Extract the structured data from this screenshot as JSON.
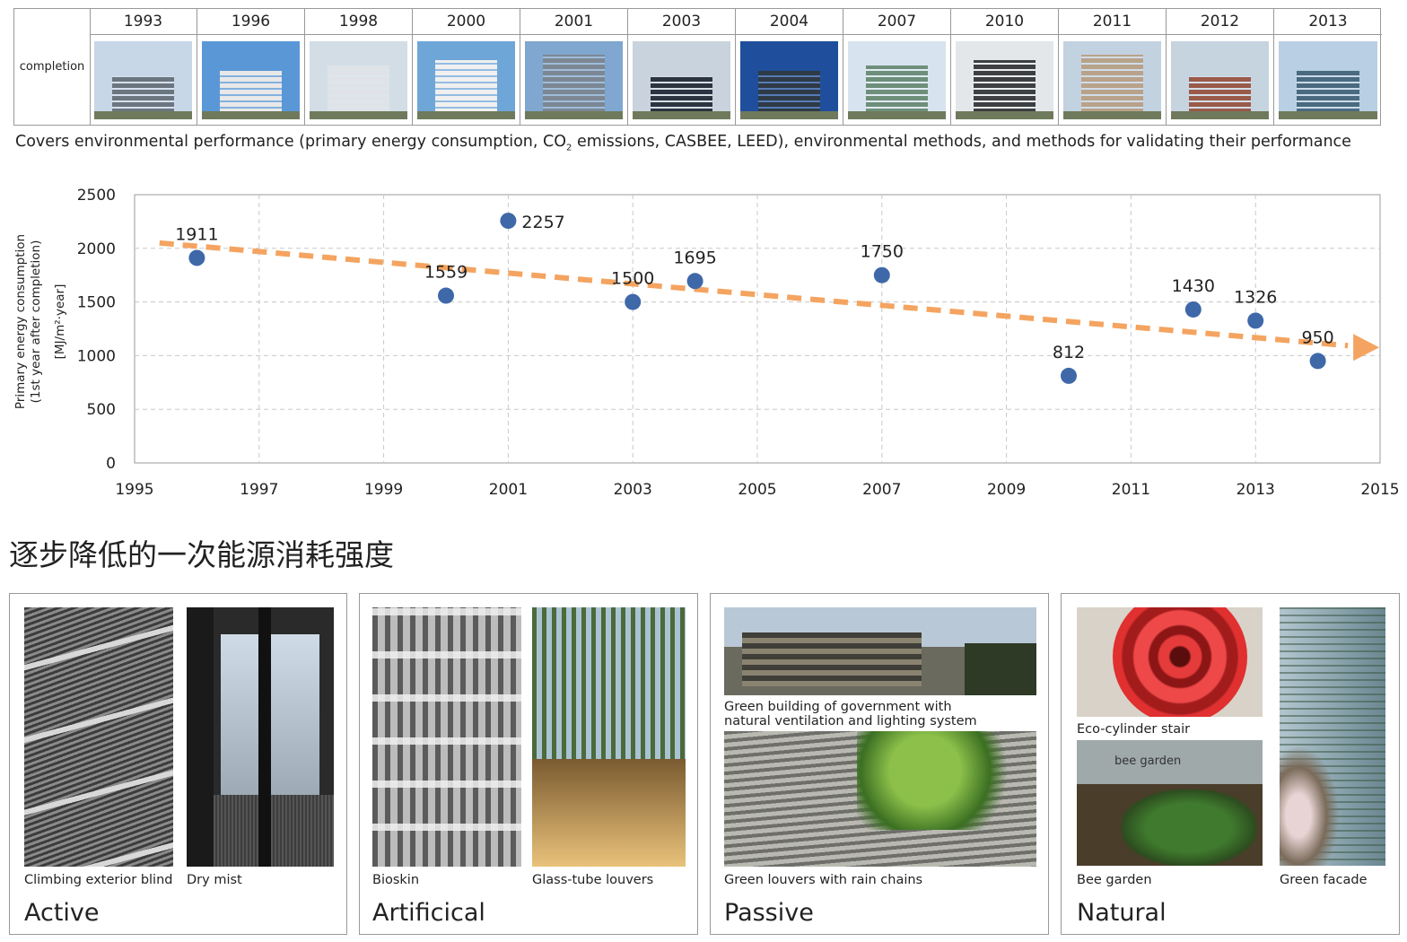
{
  "timeline": {
    "row_label": "completion",
    "years": [
      "1993",
      "1996",
      "1998",
      "2000",
      "2001",
      "2003",
      "2004",
      "2007",
      "2010",
      "2011",
      "2012",
      "2013"
    ]
  },
  "caption": {
    "before": "Covers environmental performance (primary energy consumption, CO",
    "sub": "2",
    "after": " emissions, CASBEE, LEED), environmental methods, and methods for validating their performance"
  },
  "chart_data": {
    "type": "scatter",
    "ylabel_lines": [
      "Primary energy consumption",
      "(1st year after completion)",
      "[MJ/m²·year]"
    ],
    "xlim": [
      1995,
      2015
    ],
    "ylim": [
      0,
      2500
    ],
    "x_ticks": [
      1995,
      1997,
      1999,
      2001,
      2003,
      2005,
      2007,
      2009,
      2011,
      2013,
      2015
    ],
    "y_ticks": [
      0,
      500,
      1000,
      1500,
      2000,
      2500
    ],
    "grid": true,
    "points": [
      {
        "x": 1996,
        "y": 1911,
        "label": "1911"
      },
      {
        "x": 2000,
        "y": 1559,
        "label": "1559"
      },
      {
        "x": 2001,
        "y": 2257,
        "label": "2257"
      },
      {
        "x": 2003,
        "y": 1500,
        "label": "1500"
      },
      {
        "x": 2004,
        "y": 1695,
        "label": "1695"
      },
      {
        "x": 2007,
        "y": 1750,
        "label": "1750"
      },
      {
        "x": 2010,
        "y": 812,
        "label": "812"
      },
      {
        "x": 2012,
        "y": 1430,
        "label": "1430"
      },
      {
        "x": 2013,
        "y": 1326,
        "label": "1326"
      },
      {
        "x": 2014,
        "y": 950,
        "label": "950"
      }
    ],
    "trend": {
      "x0": 1995.4,
      "y0": 2050,
      "x1": 2014.8,
      "y1": 1085
    },
    "point_color": "#3f68a9",
    "trend_color": "#f4a460"
  },
  "cn_title": "逐步降低的一次能源消耗强度",
  "panels": [
    {
      "title": "Active",
      "captions": [
        "Climbing exterior blind",
        "Dry mist"
      ]
    },
    {
      "title": "Artificical",
      "captions": [
        "Bioskin",
        "Glass-tube louvers"
      ]
    },
    {
      "title": "Passive",
      "captions": [
        "Green building of government with natural ventilation and lighting system",
        "Green louvers with rain chains"
      ],
      "cap1_lines": [
        "Green building of government with",
        "natural ventilation and lighting system"
      ]
    },
    {
      "title": "Natural",
      "captions": [
        "Eco-cylinder stair",
        "Bee garden",
        "Green facade"
      ],
      "photo_text": "bee garden"
    }
  ]
}
